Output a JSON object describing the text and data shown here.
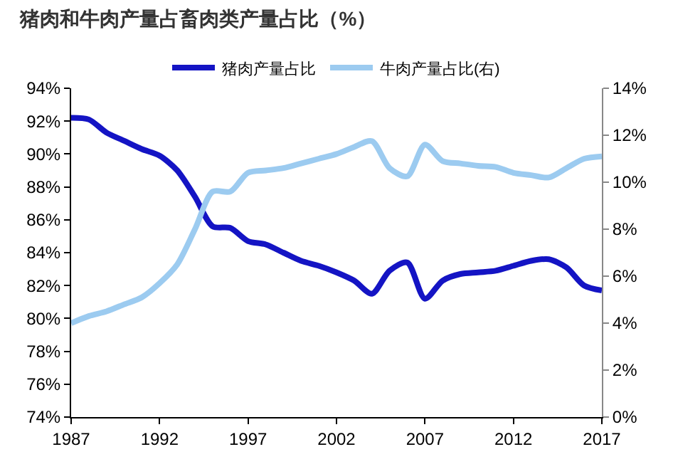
{
  "chart_data": {
    "type": "line",
    "title": "猪肉和牛肉产量占畜肉类产量占比（%）",
    "x": [
      1987,
      1988,
      1989,
      1990,
      1991,
      1992,
      1993,
      1994,
      1995,
      1996,
      1997,
      1998,
      1999,
      2000,
      2001,
      2002,
      2003,
      2004,
      2005,
      2006,
      2007,
      2008,
      2009,
      2010,
      2011,
      2012,
      2013,
      2014,
      2015,
      2016,
      2017
    ],
    "series": [
      {
        "name": "猪肉产量占比",
        "color": "#1414c4",
        "values": [
          92.2,
          92.1,
          91.3,
          90.8,
          90.3,
          89.9,
          89.0,
          87.4,
          85.6,
          85.5,
          84.7,
          84.5,
          84.0,
          83.5,
          83.2,
          82.8,
          82.3,
          81.5,
          82.9,
          83.4,
          81.2,
          82.3,
          82.7,
          82.8,
          82.9,
          83.2,
          83.5,
          83.6,
          83.1,
          82.0,
          81.7
        ]
      },
      {
        "name": "牛肉产量占比(右)",
        "color": "#9ccbf0",
        "axis": "y2",
        "values": [
          4.0,
          4.3,
          4.5,
          4.8,
          5.1,
          5.7,
          6.5,
          8.0,
          9.6,
          9.6,
          10.4,
          10.5,
          10.6,
          10.8,
          11.0,
          11.2,
          11.5,
          11.75,
          10.6,
          10.25,
          11.6,
          10.9,
          10.8,
          10.7,
          10.65,
          10.4,
          10.3,
          10.2,
          10.6,
          11.0,
          11.1
        ]
      }
    ],
    "xlim": [
      1987,
      2017
    ],
    "xticks": [
      1987,
      1992,
      1997,
      2002,
      2007,
      2012,
      2017
    ],
    "ylim": [
      74,
      94
    ],
    "yticks": [
      {
        "value": 74,
        "label": "74%"
      },
      {
        "value": 76,
        "label": "76%"
      },
      {
        "value": 78,
        "label": "78%"
      },
      {
        "value": 80,
        "label": "80%"
      },
      {
        "value": 82,
        "label": "82%"
      },
      {
        "value": 84,
        "label": "84%"
      },
      {
        "value": 86,
        "label": "86%"
      },
      {
        "value": 88,
        "label": "88%"
      },
      {
        "value": 90,
        "label": "90%"
      },
      {
        "value": 92,
        "label": "92%"
      },
      {
        "value": 94,
        "label": "94%"
      }
    ],
    "y2lim": [
      0,
      14
    ],
    "y2ticks": [
      {
        "value": 0,
        "label": "0%"
      },
      {
        "value": 2,
        "label": "2%"
      },
      {
        "value": 4,
        "label": "4%"
      },
      {
        "value": 6,
        "label": "6%"
      },
      {
        "value": 8,
        "label": "8%"
      },
      {
        "value": 10,
        "label": "10%"
      },
      {
        "value": 12,
        "label": "12%"
      },
      {
        "value": 14,
        "label": "14%"
      }
    ],
    "legend": "top",
    "grid": false,
    "marker": "none",
    "line_style": "solid"
  }
}
